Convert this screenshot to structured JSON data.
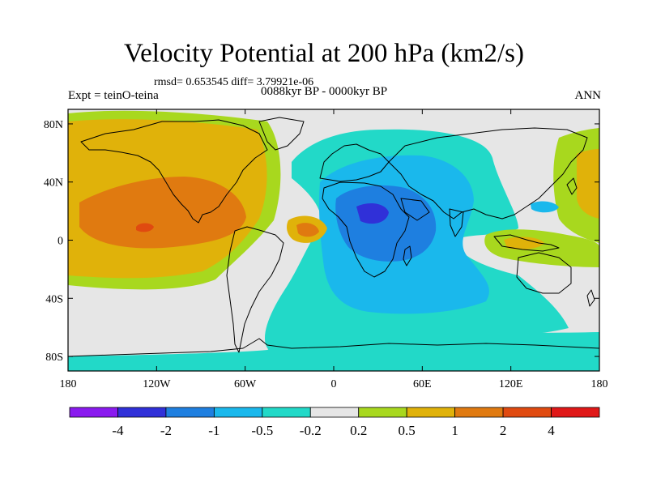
{
  "title": "Velocity Potential at 200 hPa (km2/s)",
  "stats": "rmsd= 0.653545 diff= 3.79921e-06",
  "experiment": "Expt = teinO-teina",
  "period": "0088kyr BP - 0000kyr BP",
  "season": "ANN",
  "map": {
    "projection": "cylindrical-equidistant",
    "lon_range": [
      -180,
      180
    ],
    "lat_range": [
      -90,
      90
    ],
    "lat_ticks": [
      {
        "value": 80,
        "label": "80N"
      },
      {
        "value": 40,
        "label": "40N"
      },
      {
        "value": 0,
        "label": "0"
      },
      {
        "value": -40,
        "label": "40S"
      },
      {
        "value": -80,
        "label": "80S"
      }
    ],
    "lon_ticks": [
      {
        "value": -180,
        "label": "180"
      },
      {
        "value": -120,
        "label": "120W"
      },
      {
        "value": -60,
        "label": "60W"
      },
      {
        "value": 0,
        "label": "0"
      },
      {
        "value": 60,
        "label": "60E"
      },
      {
        "value": 120,
        "label": "120E"
      },
      {
        "value": 180,
        "label": "180"
      }
    ],
    "field_centers": [
      {
        "lon": -133,
        "lat": 8,
        "value": 2
      },
      {
        "lon": 22,
        "lat": 5,
        "value": -2
      },
      {
        "lon": 165,
        "lat": 20,
        "value": 1
      },
      {
        "lon": 128,
        "lat": 0,
        "value": 0.5
      },
      {
        "lon": -20,
        "lat": -2,
        "value": 1
      }
    ]
  },
  "colorbar": {
    "colors": [
      "#8a1aef",
      "#3030d8",
      "#1e7fe0",
      "#1ab8ec",
      "#22d9c8",
      "#e6e6e6",
      "#a8d81e",
      "#e0b20a",
      "#e07a10",
      "#e04a10",
      "#e01818"
    ],
    "labels": [
      "-4",
      "-2",
      "-1",
      "-0.5",
      "-0.2",
      "0.2",
      "0.5",
      "1",
      "2",
      "4"
    ]
  }
}
